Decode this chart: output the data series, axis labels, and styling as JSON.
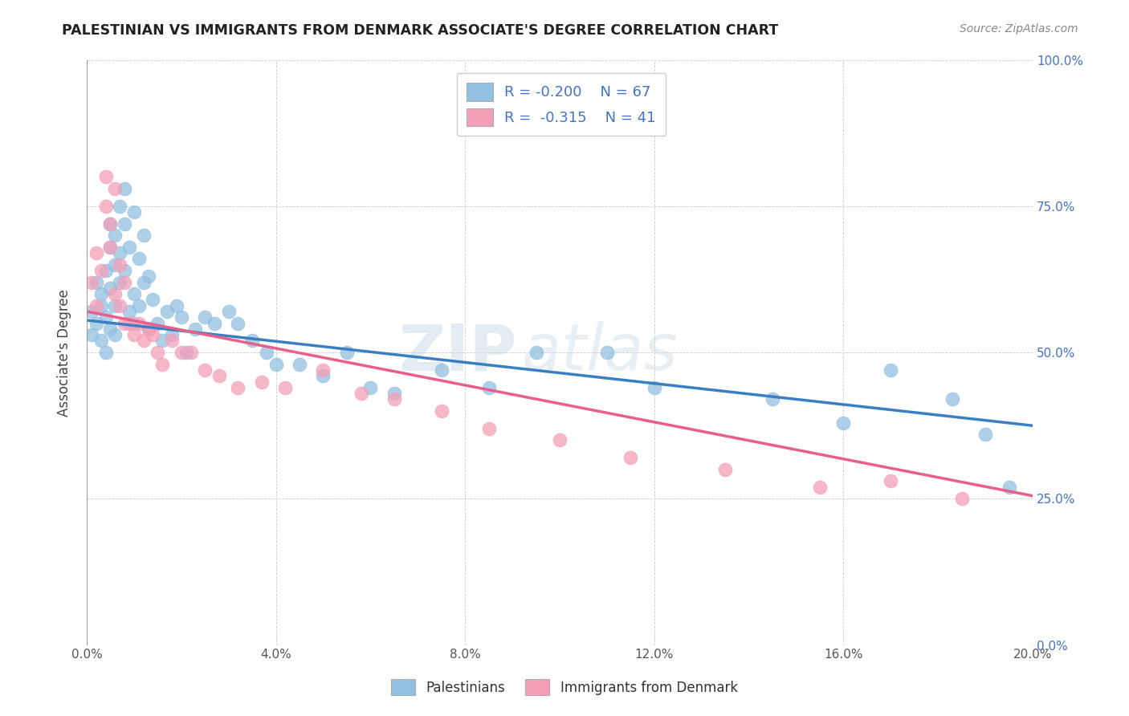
{
  "title": "PALESTINIAN VS IMMIGRANTS FROM DENMARK ASSOCIATE'S DEGREE CORRELATION CHART",
  "source": "Source: ZipAtlas.com",
  "ylabel": "Associate's Degree",
  "blue_color": "#92c0e0",
  "pink_color": "#f4a0b8",
  "blue_line_color": "#3a7fc1",
  "pink_line_color": "#e8608a",
  "watermark_zip": "ZIP",
  "watermark_atlas": "atlas",
  "palestinians_x": [
    0.001,
    0.001,
    0.002,
    0.002,
    0.003,
    0.003,
    0.003,
    0.004,
    0.004,
    0.004,
    0.005,
    0.005,
    0.005,
    0.005,
    0.006,
    0.006,
    0.006,
    0.006,
    0.007,
    0.007,
    0.007,
    0.008,
    0.008,
    0.008,
    0.009,
    0.009,
    0.01,
    0.01,
    0.01,
    0.011,
    0.011,
    0.012,
    0.012,
    0.013,
    0.013,
    0.014,
    0.015,
    0.016,
    0.017,
    0.018,
    0.019,
    0.02,
    0.021,
    0.023,
    0.025,
    0.027,
    0.03,
    0.032,
    0.035,
    0.038,
    0.04,
    0.045,
    0.05,
    0.055,
    0.06,
    0.065,
    0.075,
    0.085,
    0.095,
    0.11,
    0.12,
    0.145,
    0.16,
    0.17,
    0.183,
    0.19,
    0.195
  ],
  "palestinians_y": [
    0.53,
    0.57,
    0.55,
    0.62,
    0.58,
    0.52,
    0.6,
    0.56,
    0.64,
    0.5,
    0.68,
    0.54,
    0.61,
    0.72,
    0.65,
    0.58,
    0.7,
    0.53,
    0.75,
    0.62,
    0.67,
    0.78,
    0.72,
    0.64,
    0.68,
    0.57,
    0.74,
    0.6,
    0.55,
    0.66,
    0.58,
    0.62,
    0.7,
    0.63,
    0.54,
    0.59,
    0.55,
    0.52,
    0.57,
    0.53,
    0.58,
    0.56,
    0.5,
    0.54,
    0.56,
    0.55,
    0.57,
    0.55,
    0.52,
    0.5,
    0.48,
    0.48,
    0.46,
    0.5,
    0.44,
    0.43,
    0.47,
    0.44,
    0.5,
    0.5,
    0.44,
    0.42,
    0.38,
    0.47,
    0.42,
    0.36,
    0.27
  ],
  "denmark_x": [
    0.001,
    0.002,
    0.002,
    0.003,
    0.004,
    0.004,
    0.005,
    0.005,
    0.006,
    0.006,
    0.007,
    0.007,
    0.008,
    0.008,
    0.009,
    0.01,
    0.011,
    0.012,
    0.013,
    0.014,
    0.015,
    0.016,
    0.018,
    0.02,
    0.022,
    0.025,
    0.028,
    0.032,
    0.037,
    0.042,
    0.05,
    0.058,
    0.065,
    0.075,
    0.085,
    0.1,
    0.115,
    0.135,
    0.155,
    0.17,
    0.185
  ],
  "denmark_y": [
    0.62,
    0.67,
    0.58,
    0.64,
    0.75,
    0.8,
    0.68,
    0.72,
    0.78,
    0.6,
    0.65,
    0.58,
    0.55,
    0.62,
    0.55,
    0.53,
    0.55,
    0.52,
    0.54,
    0.53,
    0.5,
    0.48,
    0.52,
    0.5,
    0.5,
    0.47,
    0.46,
    0.44,
    0.45,
    0.44,
    0.47,
    0.43,
    0.42,
    0.4,
    0.37,
    0.35,
    0.32,
    0.3,
    0.27,
    0.28,
    0.25
  ],
  "xmin": 0.0,
  "xmax": 0.2,
  "ymin": 0.0,
  "ymax": 1.0,
  "xticks": [
    0.0,
    0.04,
    0.08,
    0.12,
    0.16,
    0.2
  ],
  "xtick_labels": [
    "0.0%",
    "4.0%",
    "8.0%",
    "12.0%",
    "16.0%",
    "20.0%"
  ],
  "yticks_right": [
    0.0,
    0.25,
    0.5,
    0.75,
    1.0
  ],
  "ytick_labels_right": [
    "0.0%",
    "25.0%",
    "50.0%",
    "75.0%",
    "100.0%"
  ],
  "blue_r": "-0.200",
  "blue_n": "67",
  "pink_r": "-0.315",
  "pink_n": "41"
}
